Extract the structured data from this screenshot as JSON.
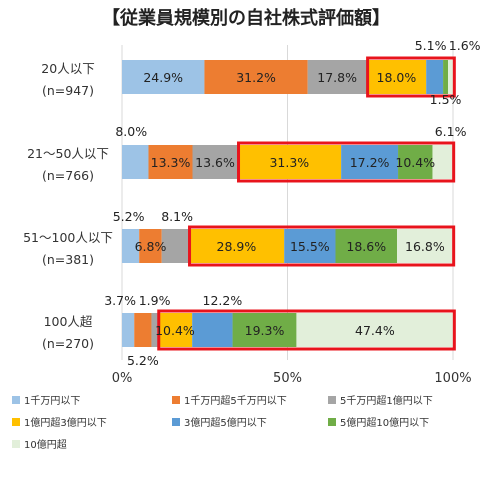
{
  "chart_data": {
    "type": "bar",
    "orientation": "horizontal",
    "stacked": true,
    "title": "【従業員規模別の自社株式評価額】",
    "categories": [
      {
        "name": "20人以下",
        "n": "(n=947)"
      },
      {
        "name": "21〜50人以下",
        "n": "(n=766)"
      },
      {
        "name": "51〜100人以下",
        "n": "(n=381)"
      },
      {
        "name": "100人超",
        "n": "(n=270)"
      }
    ],
    "series": [
      {
        "name": "1千万円以下",
        "color": "#9dc3e6",
        "values": [
          24.9,
          8.0,
          5.2,
          3.7
        ]
      },
      {
        "name": "1千万円超5千万円以下",
        "color": "#ed7d31",
        "values": [
          31.2,
          13.3,
          6.8,
          5.2
        ]
      },
      {
        "name": "5千万円超1億円以下",
        "color": "#a5a5a5",
        "values": [
          17.8,
          13.6,
          8.1,
          1.9
        ]
      },
      {
        "name": "1億円超3億円以下",
        "color": "#ffc000",
        "values": [
          18.0,
          31.3,
          28.9,
          10.4
        ]
      },
      {
        "name": "3億円超5億円以下",
        "color": "#5b9bd5",
        "values": [
          5.1,
          17.2,
          15.5,
          12.2
        ]
      },
      {
        "name": "5億円超10億円以下",
        "color": "#70ad47",
        "values": [
          1.5,
          10.4,
          18.6,
          19.3
        ]
      },
      {
        "name": "10億円超",
        "color": "#e2efda",
        "values": [
          1.6,
          6.1,
          16.8,
          47.4
        ]
      }
    ],
    "xlim": [
      0,
      100
    ],
    "x_ticks": [
      "0%",
      "50%",
      "100%"
    ],
    "highlight_from_series": 3,
    "highlight_color": "#e8141c",
    "grid": true,
    "legend_position": "bottom"
  }
}
